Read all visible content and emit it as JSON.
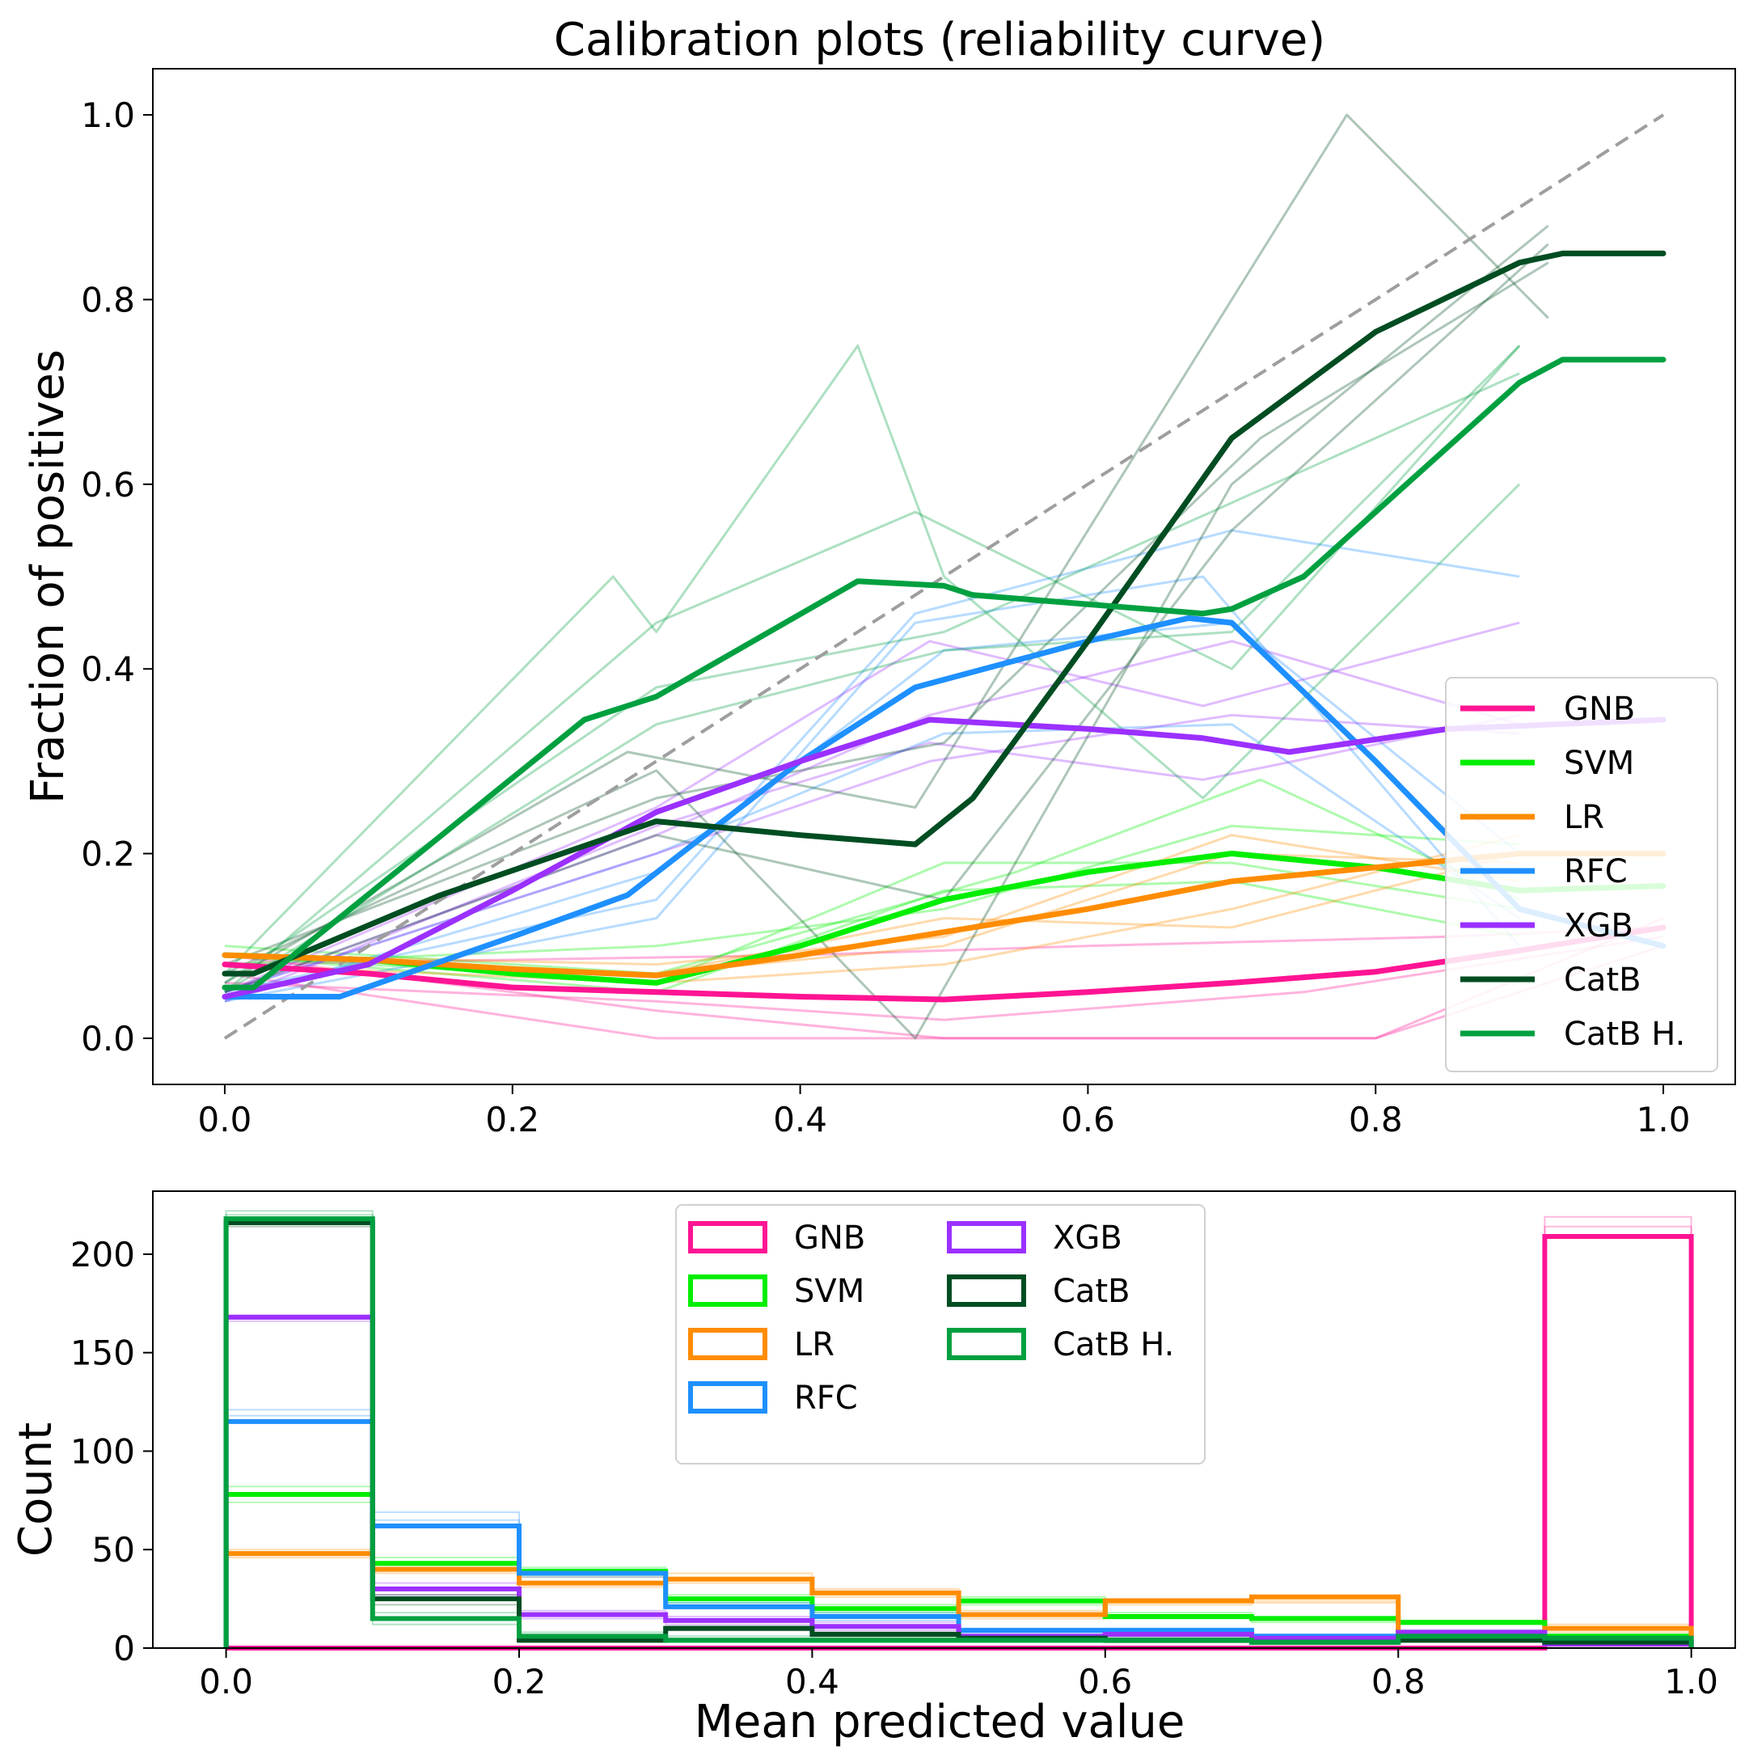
{
  "chart_data": [
    {
      "type": "line",
      "title": "Calibration plots  (reliability curve)",
      "xlabel": "",
      "ylabel": "Fraction of positives",
      "xlim": [
        -0.05,
        1.05
      ],
      "ylim": [
        -0.05,
        1.05
      ],
      "xticks": [
        "0.0",
        "0.2",
        "0.4",
        "0.6",
        "0.8",
        "1.0"
      ],
      "yticks": [
        "0.0",
        "0.2",
        "0.4",
        "0.6",
        "0.8",
        "1.0"
      ],
      "grid": false,
      "legend_position": "lower-right",
      "reference_line": {
        "x": [
          0,
          1
        ],
        "y": [
          0,
          1
        ],
        "color": "#9e9e9e",
        "style": "dashed"
      },
      "series": [
        {
          "name": "GNB",
          "color": "#ff1493",
          "x": [
            0.0,
            0.1,
            0.2,
            0.3,
            0.4,
            0.5,
            0.6,
            0.7,
            0.8,
            0.9,
            1.0
          ],
          "y": [
            0.08,
            0.07,
            0.055,
            0.05,
            0.045,
            0.042,
            0.05,
            0.06,
            0.072,
            0.095,
            0.12
          ],
          "folds": [
            {
              "x": [
                0.0,
                0.3,
                0.5,
                0.8,
                1.0
              ],
              "y": [
                0.09,
                0.03,
                0.0,
                0.0,
                0.13
              ]
            },
            {
              "x": [
                0.0,
                0.3,
                0.55,
                0.8,
                1.0
              ],
              "y": [
                0.07,
                0.0,
                0.0,
                0.0,
                0.1
              ]
            },
            {
              "x": [
                0.0,
                0.4,
                0.6,
                0.85,
                1.0
              ],
              "y": [
                0.08,
                0.09,
                0.1,
                0.11,
                0.12
              ]
            },
            {
              "x": [
                0.0,
                0.3,
                0.5,
                0.75,
                1.0
              ],
              "y": [
                0.06,
                0.04,
                0.02,
                0.05,
                0.11
              ]
            }
          ]
        },
        {
          "name": "SVM",
          "color": "#00ee00",
          "x": [
            0.0,
            0.1,
            0.2,
            0.3,
            0.4,
            0.5,
            0.6,
            0.7,
            0.8,
            0.9,
            1.0
          ],
          "y": [
            0.09,
            0.085,
            0.07,
            0.06,
            0.1,
            0.15,
            0.18,
            0.2,
            0.185,
            0.16,
            0.165
          ],
          "folds": [
            {
              "x": [
                0.0,
                0.3,
                0.5,
                0.7,
                0.9
              ],
              "y": [
                0.09,
                0.06,
                0.19,
                0.19,
                0.14
              ]
            },
            {
              "x": [
                0.0,
                0.3,
                0.5,
                0.7,
                0.9
              ],
              "y": [
                0.08,
                0.1,
                0.14,
                0.23,
                0.21
              ]
            },
            {
              "x": [
                0.0,
                0.3,
                0.5,
                0.7,
                0.9
              ],
              "y": [
                0.09,
                0.05,
                0.16,
                0.17,
                0.11
              ]
            },
            {
              "x": [
                0.0,
                0.3,
                0.55,
                0.72,
                0.9
              ],
              "y": [
                0.1,
                0.07,
                0.18,
                0.28,
                0.15
              ]
            }
          ]
        },
        {
          "name": "LR",
          "color": "#ff8c00",
          "x": [
            0.0,
            0.1,
            0.2,
            0.3,
            0.4,
            0.5,
            0.6,
            0.7,
            0.8,
            0.9,
            1.0
          ],
          "y": [
            0.09,
            0.085,
            0.075,
            0.068,
            0.09,
            0.115,
            0.14,
            0.17,
            0.185,
            0.2,
            0.2
          ],
          "folds": [
            {
              "x": [
                0.0,
                0.3,
                0.5,
                0.7,
                0.9
              ],
              "y": [
                0.09,
                0.07,
                0.1,
                0.2,
                0.19
              ]
            },
            {
              "x": [
                0.0,
                0.3,
                0.5,
                0.7,
                0.9
              ],
              "y": [
                0.08,
                0.06,
                0.08,
                0.14,
                0.22
              ]
            },
            {
              "x": [
                0.0,
                0.3,
                0.5,
                0.7,
                0.9
              ],
              "y": [
                0.09,
                0.07,
                0.13,
                0.12,
                0.2
              ]
            },
            {
              "x": [
                0.0,
                0.3,
                0.5,
                0.7,
                0.9
              ],
              "y": [
                0.09,
                0.08,
                0.11,
                0.22,
                0.17
              ]
            }
          ]
        },
        {
          "name": "RFC",
          "color": "#1e90ff",
          "x": [
            0.0,
            0.08,
            0.2,
            0.28,
            0.4,
            0.48,
            0.6,
            0.67,
            0.7,
            0.8,
            0.9,
            1.0
          ],
          "y": [
            0.045,
            0.045,
            0.11,
            0.155,
            0.3,
            0.38,
            0.43,
            0.455,
            0.45,
            0.3,
            0.14,
            0.1
          ],
          "folds": [
            {
              "x": [
                0.0,
                0.3,
                0.48,
                0.7,
                0.9
              ],
              "y": [
                0.05,
                0.15,
                0.46,
                0.55,
                0.5
              ]
            },
            {
              "x": [
                0.0,
                0.3,
                0.48,
                0.68,
                0.9
              ],
              "y": [
                0.04,
                0.13,
                0.45,
                0.5,
                0.1
              ]
            },
            {
              "x": [
                0.0,
                0.3,
                0.5,
                0.7,
                0.9
              ],
              "y": [
                0.05,
                0.2,
                0.33,
                0.34,
                0.13
              ]
            },
            {
              "x": [
                0.0,
                0.3,
                0.5,
                0.7,
                0.9
              ],
              "y": [
                0.04,
                0.18,
                0.42,
                0.45,
                0.2
              ]
            }
          ]
        },
        {
          "name": "XGB",
          "color": "#9b30ff",
          "x": [
            0.0,
            0.1,
            0.2,
            0.3,
            0.4,
            0.49,
            0.6,
            0.68,
            0.74,
            0.85,
            1.0
          ],
          "y": [
            0.045,
            0.08,
            0.16,
            0.245,
            0.3,
            0.345,
            0.335,
            0.325,
            0.31,
            0.335,
            0.345
          ],
          "folds": [
            {
              "x": [
                0.0,
                0.3,
                0.49,
                0.68,
                0.9
              ],
              "y": [
                0.05,
                0.25,
                0.43,
                0.36,
                0.45
              ]
            },
            {
              "x": [
                0.0,
                0.3,
                0.49,
                0.68,
                0.9
              ],
              "y": [
                0.04,
                0.23,
                0.32,
                0.28,
                0.35
              ]
            },
            {
              "x": [
                0.0,
                0.3,
                0.49,
                0.7,
                0.9
              ],
              "y": [
                0.05,
                0.22,
                0.35,
                0.43,
                0.34
              ]
            },
            {
              "x": [
                0.0,
                0.3,
                0.49,
                0.7,
                0.9
              ],
              "y": [
                0.05,
                0.2,
                0.3,
                0.35,
                0.33
              ]
            }
          ]
        },
        {
          "name": "CatB",
          "color": "#004d22",
          "x": [
            0.0,
            0.02,
            0.15,
            0.3,
            0.4,
            0.48,
            0.52,
            0.6,
            0.7,
            0.8,
            0.9,
            0.93,
            1.0
          ],
          "y": [
            0.07,
            0.07,
            0.155,
            0.235,
            0.22,
            0.21,
            0.26,
            0.43,
            0.65,
            0.765,
            0.84,
            0.85,
            0.85
          ],
          "folds": [
            {
              "x": [
                0.0,
                0.28,
                0.48,
                0.78,
                0.92
              ],
              "y": [
                0.06,
                0.31,
                0.25,
                1.0,
                0.78
              ]
            },
            {
              "x": [
                0.0,
                0.3,
                0.48,
                0.7,
                0.92
              ],
              "y": [
                0.07,
                0.29,
                0.0,
                0.6,
                0.88
              ]
            },
            {
              "x": [
                0.0,
                0.3,
                0.5,
                0.7,
                0.92
              ],
              "y": [
                0.05,
                0.22,
                0.15,
                0.55,
                0.86
              ]
            },
            {
              "x": [
                0.0,
                0.3,
                0.5,
                0.72,
                0.92
              ],
              "y": [
                0.08,
                0.26,
                0.32,
                0.65,
                0.84
              ]
            }
          ]
        },
        {
          "name": "CatB H.",
          "color": "#00a040",
          "x": [
            0.0,
            0.02,
            0.25,
            0.3,
            0.44,
            0.5,
            0.52,
            0.68,
            0.7,
            0.75,
            0.8,
            0.9,
            0.93,
            1.0
          ],
          "y": [
            0.055,
            0.055,
            0.345,
            0.37,
            0.495,
            0.49,
            0.48,
            0.46,
            0.465,
            0.5,
            0.57,
            0.71,
            0.735,
            0.735
          ],
          "folds": [
            {
              "x": [
                0.0,
                0.27,
                0.3,
                0.44,
                0.5,
                0.68,
                0.9
              ],
              "y": [
                0.07,
                0.5,
                0.44,
                0.75,
                0.5,
                0.26,
                0.6
              ]
            },
            {
              "x": [
                0.0,
                0.3,
                0.48,
                0.7,
                0.9
              ],
              "y": [
                0.05,
                0.45,
                0.57,
                0.4,
                0.75
              ]
            },
            {
              "x": [
                0.0,
                0.3,
                0.5,
                0.7,
                0.9
              ],
              "y": [
                0.06,
                0.38,
                0.44,
                0.58,
                0.72
              ]
            },
            {
              "x": [
                0.0,
                0.3,
                0.5,
                0.7,
                0.9
              ],
              "y": [
                0.05,
                0.34,
                0.42,
                0.44,
                0.75
              ]
            }
          ]
        }
      ]
    },
    {
      "type": "histogram",
      "title": "",
      "xlabel": "Mean predicted value",
      "ylabel": "Count",
      "xlim": [
        -0.05,
        1.03
      ],
      "ylim": [
        0,
        232
      ],
      "xticks": [
        "0.0",
        "0.2",
        "0.4",
        "0.6",
        "0.8",
        "1.0"
      ],
      "yticks": [
        "0",
        "50",
        "100",
        "150",
        "200"
      ],
      "grid": false,
      "legend_position": "upper-center",
      "legend_columns": 2,
      "bin_edges": [
        0.0,
        0.1,
        0.2,
        0.3,
        0.4,
        0.5,
        0.6,
        0.7,
        0.8,
        0.9,
        1.0
      ],
      "series": [
        {
          "name": "GNB",
          "color": "#ff1493",
          "counts": [
            0,
            0,
            0,
            0,
            0,
            0,
            0,
            0,
            0,
            209
          ],
          "fold_counts": [
            [
              0,
              0,
              0,
              0,
              0,
              0,
              0,
              0,
              0,
              214
            ],
            [
              0,
              0,
              0,
              0,
              0,
              0,
              0,
              0,
              0,
              219
            ]
          ]
        },
        {
          "name": "SVM",
          "color": "#00ee00",
          "counts": [
            78,
            43,
            39,
            25,
            20,
            24,
            16,
            15,
            13,
            6
          ],
          "fold_counts": [
            [
              74,
              40,
              37,
              23,
              18,
              22,
              15,
              13,
              12,
              5
            ],
            [
              82,
              46,
              41,
              27,
              22,
              26,
              18,
              16,
              14,
              7
            ]
          ]
        },
        {
          "name": "LR",
          "color": "#ff8c00",
          "counts": [
            48,
            40,
            33,
            35,
            28,
            17,
            24,
            26,
            5,
            10
          ],
          "fold_counts": [
            [
              50,
              42,
              36,
              38,
              30,
              19,
              25,
              24,
              7,
              12
            ],
            [
              46,
              38,
              31,
              33,
              26,
              15,
              22,
              23,
              4,
              8
            ]
          ]
        },
        {
          "name": "RFC",
          "color": "#1e90ff",
          "counts": [
            115,
            62,
            38,
            21,
            16,
            9,
            9,
            6,
            8,
            3
          ],
          "fold_counts": [
            [
              121,
              69,
              40,
              23,
              18,
              10,
              10,
              7,
              9,
              4
            ],
            [
              118,
              65,
              36,
              20,
              14,
              8,
              8,
              5,
              7,
              2
            ]
          ]
        },
        {
          "name": "XGB",
          "color": "#9b30ff",
          "counts": [
            168,
            30,
            17,
            14,
            11,
            6,
            7,
            5,
            8,
            2
          ],
          "fold_counts": [
            [
              169,
              33,
              19,
              16,
              13,
              7,
              8,
              6,
              9,
              3
            ],
            [
              166,
              27,
              15,
              12,
              9,
              5,
              6,
              4,
              7,
              1
            ]
          ]
        },
        {
          "name": "CatB",
          "color": "#004d22",
          "counts": [
            216,
            25,
            4,
            10,
            7,
            5,
            4,
            3,
            4,
            3
          ],
          "fold_counts": [
            [
              218,
              27,
              5,
              11,
              8,
              6,
              5,
              4,
              5,
              4
            ],
            [
              214,
              22,
              3,
              9,
              6,
              4,
              3,
              2,
              3,
              2
            ]
          ]
        },
        {
          "name": "CatB H.",
          "color": "#00a040",
          "counts": [
            218,
            15,
            6,
            4,
            4,
            4,
            4,
            3,
            6,
            5
          ],
          "fold_counts": [
            [
              222,
              18,
              8,
              6,
              5,
              5,
              5,
              4,
              7,
              6
            ],
            [
              220,
              12,
              5,
              3,
              3,
              3,
              3,
              2,
              5,
              4
            ]
          ]
        }
      ]
    }
  ]
}
